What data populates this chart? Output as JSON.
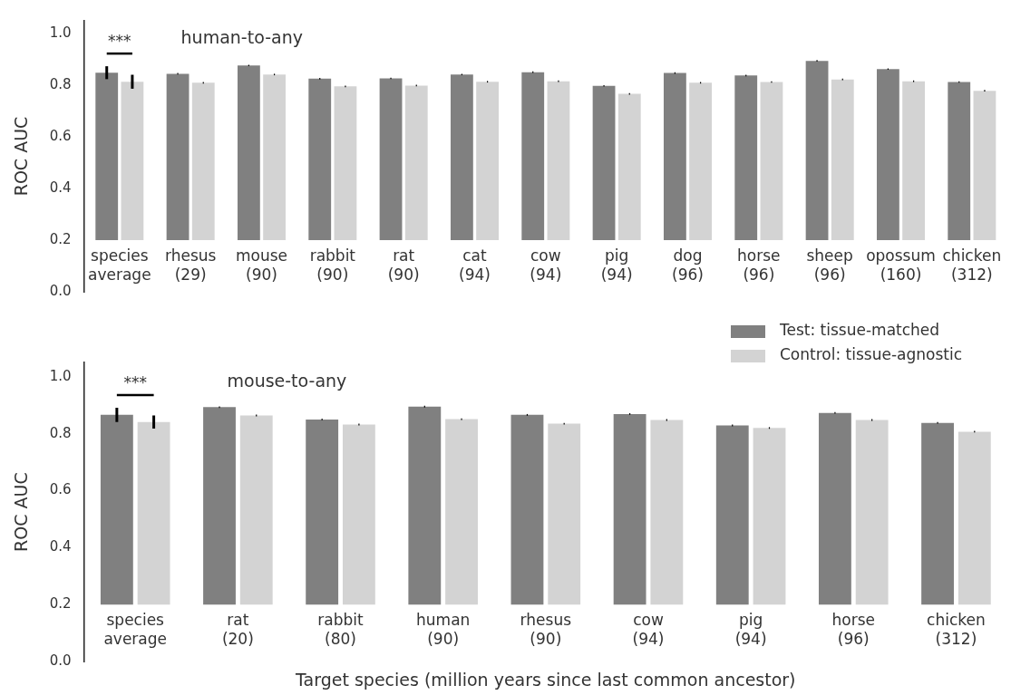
{
  "chart_data": [
    {
      "type": "bar",
      "title": "human-to-any",
      "ylabel": "ROC AUC",
      "categories": [
        "species\naverage",
        "rhesus\n(29)",
        "mouse\n(90)",
        "rabbit\n(90)",
        "rat\n(90)",
        "cat\n(94)",
        "cow\n(94)",
        "pig\n(94)",
        "dog\n(96)",
        "horse\n(96)",
        "sheep\n(96)",
        "opossum\n(160)",
        "chicken\n(312)"
      ],
      "series": [
        {
          "color": "#808080",
          "base": [
            0.2,
            0.2,
            0.2,
            0.2,
            0.2,
            0.2,
            0.2,
            0.2,
            0.2,
            0.2,
            0.2,
            0.2,
            0.2
          ],
          "values": [
            0.649,
            0.645,
            0.677,
            0.626,
            0.627,
            0.642,
            0.651,
            0.598,
            0.648,
            0.638,
            0.695,
            0.663,
            0.613
          ],
          "errors": [
            0.025,
            0.003,
            0.003,
            0.003,
            0.003,
            0.003,
            0.003,
            0.003,
            0.003,
            0.003,
            0.003,
            0.003,
            0.003
          ]
        },
        {
          "color": "#d3d3d3",
          "base": [
            0.2,
            0.2,
            0.2,
            0.2,
            0.2,
            0.2,
            0.2,
            0.2,
            0.2,
            0.2,
            0.2,
            0.2,
            0.2
          ],
          "values": [
            0.614,
            0.61,
            0.642,
            0.596,
            0.599,
            0.614,
            0.616,
            0.567,
            0.61,
            0.613,
            0.623,
            0.616,
            0.579
          ],
          "errors": [
            0.027,
            0.003,
            0.003,
            0.003,
            0.003,
            0.003,
            0.003,
            0.003,
            0.003,
            0.003,
            0.003,
            0.003,
            0.003
          ]
        }
      ],
      "ylim": [
        0,
        1.05
      ],
      "yticks": [
        {
          "value": 0,
          "label": "0.0"
        },
        {
          "value": 0.2,
          "label": "0.2"
        },
        {
          "value": 0.4,
          "label": "0.4"
        },
        {
          "value": 0.6,
          "label": "0.6"
        },
        {
          "value": 0.8,
          "label": "0.8"
        },
        {
          "value": 1,
          "label": "1.0"
        }
      ],
      "annotations": [
        "***"
      ]
    },
    {
      "type": "bar",
      "title": "mouse-to-any",
      "ylabel": "ROC AUC",
      "xlabel": "Target species (million years since last common ancestor)",
      "categories": [
        "species\naverage",
        "rat\n(20)",
        "rabbit\n(80)",
        "human\n(90)",
        "rhesus\n(90)",
        "cow\n(94)",
        "pig\n(94)",
        "horse\n(96)",
        "chicken\n(312)"
      ],
      "series": [
        {
          "name": "Test: tissue-matched",
          "color": "#808080",
          "base": [
            0.2,
            0.2,
            0.2,
            0.2,
            0.2,
            0.2,
            0.2,
            0.2,
            0.2
          ],
          "values": [
            0.666,
            0.693,
            0.65,
            0.695,
            0.666,
            0.669,
            0.629,
            0.673,
            0.638
          ],
          "errors": [
            0.025,
            0.003,
            0.003,
            0.003,
            0.003,
            0.003,
            0.003,
            0.003,
            0.003
          ]
        },
        {
          "name": "Control: tissue-agnostic",
          "color": "#d3d3d3",
          "base": [
            0.2,
            0.2,
            0.2,
            0.2,
            0.2,
            0.2,
            0.2,
            0.2,
            0.2
          ],
          "values": [
            0.641,
            0.664,
            0.632,
            0.651,
            0.635,
            0.648,
            0.62,
            0.648,
            0.607
          ],
          "errors": [
            0.023,
            0.003,
            0.003,
            0.003,
            0.003,
            0.003,
            0.003,
            0.003,
            0.003
          ]
        }
      ],
      "ylim": [
        0,
        1.05
      ],
      "yticks": [
        {
          "value": 0,
          "label": "0.0"
        },
        {
          "value": 0.2,
          "label": "0.2"
        },
        {
          "value": 0.4,
          "label": "0.4"
        },
        {
          "value": 0.6,
          "label": "0.6"
        },
        {
          "value": 0.8,
          "label": "0.8"
        },
        {
          "value": 1,
          "label": "1.0"
        }
      ],
      "annotations": [
        "***"
      ],
      "legend": "top right"
    }
  ]
}
